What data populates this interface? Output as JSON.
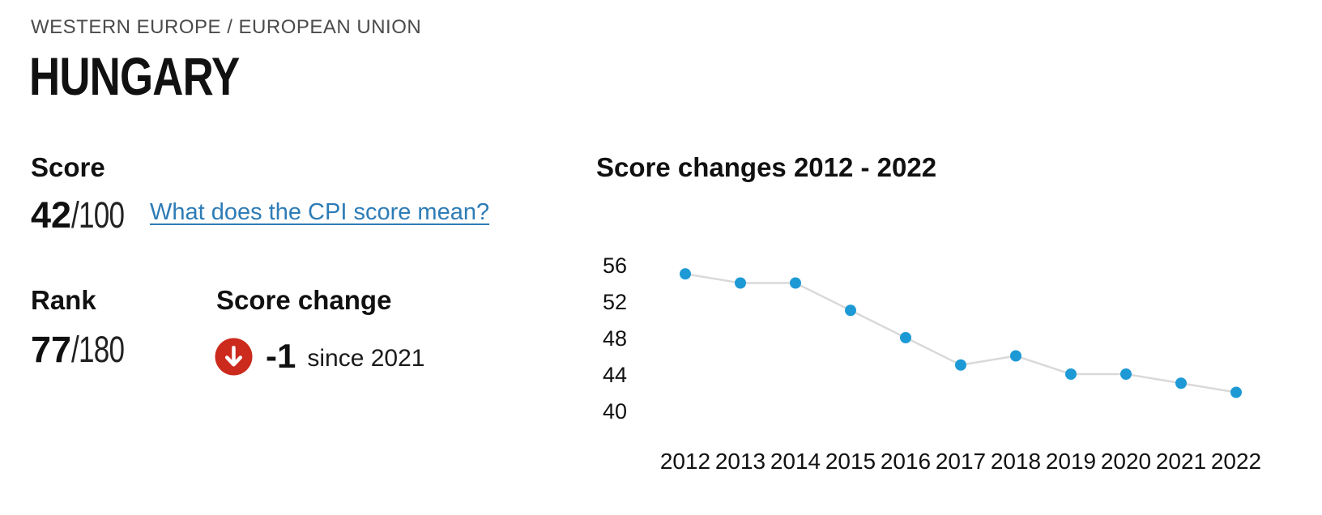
{
  "page": {
    "breadcrumb": "WESTERN EUROPE / EUROPEAN UNION",
    "country": "HUNGARY"
  },
  "score": {
    "label": "Score",
    "value": "42",
    "denominator": "/100",
    "link_label": "What does the CPI score mean?"
  },
  "rank": {
    "label": "Rank",
    "value": "77",
    "denominator": "/180"
  },
  "score_change": {
    "label": "Score change",
    "value": "-1",
    "caption": "since 2021",
    "icon": "down-arrow-circle-icon",
    "icon_color": "#cb2a1d"
  },
  "chart": {
    "title": "Score changes 2012 - 2022"
  },
  "chart_data": {
    "type": "line",
    "title": "Score changes 2012 - 2022",
    "x": [
      2012,
      2013,
      2014,
      2015,
      2016,
      2017,
      2018,
      2019,
      2020,
      2021,
      2022
    ],
    "values": [
      55,
      54,
      54,
      51,
      48,
      45,
      46,
      44,
      44,
      43,
      42
    ],
    "y_ticks": [
      56,
      52,
      48,
      44,
      40
    ],
    "ylim": [
      38,
      58
    ],
    "grid": false,
    "legend": "none",
    "point_color": "#1d9ad6",
    "line_color": "#d9d9d9",
    "tick_color": "#111111"
  }
}
